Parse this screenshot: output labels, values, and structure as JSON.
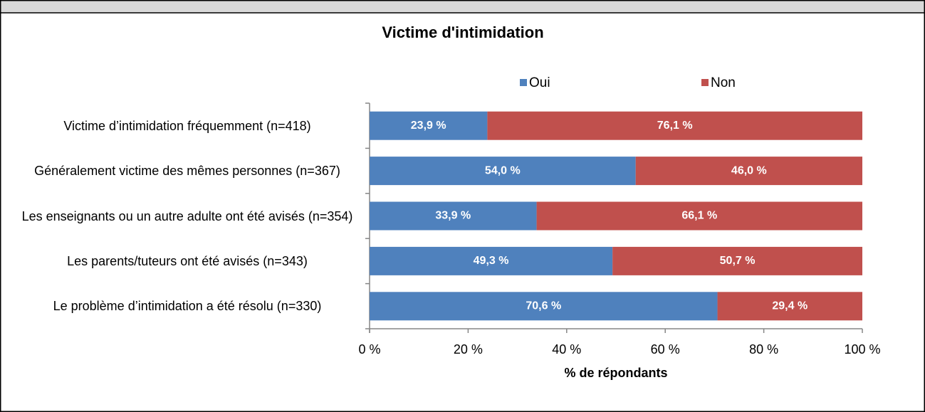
{
  "chart_data": {
    "type": "stacked-bar-horizontal",
    "title": "Victime d'intimidation",
    "xlabel": "% de répondants",
    "categories": [
      "Victime d’intimidation fréquemment (n=418)",
      "Généralement victime des mêmes personnes (n=367)",
      "Les enseignants ou un autre adulte ont été avisés (n=354)",
      "Les parents/tuteurs ont été avisés (n=343)",
      "Le problème d’intimidation a été résolu (n=330)"
    ],
    "series": [
      {
        "name": "Oui",
        "color": "#4f81bd",
        "values": [
          23.9,
          54.0,
          33.9,
          49.3,
          70.6
        ],
        "value_labels": [
          "23,9 %",
          "54,0 %",
          "33,9 %",
          "49,3 %",
          "70,6 %"
        ]
      },
      {
        "name": "Non",
        "color": "#c0504d",
        "values": [
          76.1,
          46.0,
          66.1,
          50.7,
          29.4
        ],
        "value_labels": [
          "76,1 %",
          "46,0 %",
          "66,1 %",
          "50,7 %",
          "29,4 %"
        ]
      }
    ],
    "xlim": [
      0,
      100
    ],
    "xticks": [
      {
        "value": 0,
        "label": "0 %"
      },
      {
        "value": 20,
        "label": "20 %"
      },
      {
        "value": 40,
        "label": "40 %"
      },
      {
        "value": 60,
        "label": "60 %"
      },
      {
        "value": 80,
        "label": "80 %"
      },
      {
        "value": 100,
        "label": "100 %"
      }
    ],
    "legend": "top"
  }
}
